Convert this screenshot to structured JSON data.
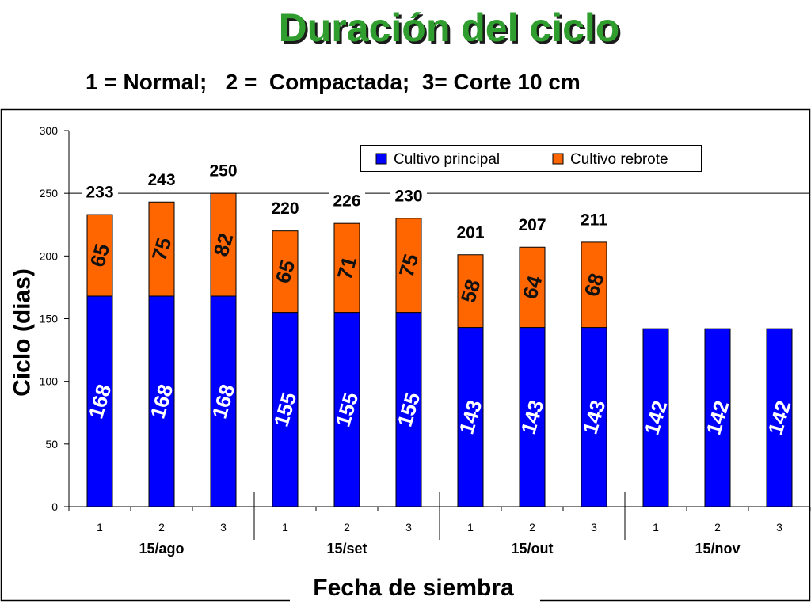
{
  "title": "Duración del ciclo",
  "subtitle": "1 = Normal;   2 =  Compactada;  3= Corte 10 cm",
  "theme": {
    "title_color": "#2f9e2f",
    "axis_color": "#000000",
    "background": "#ffffff"
  },
  "chart_data": {
    "type": "bar",
    "stacked": true,
    "categories": [
      "1",
      "2",
      "3",
      "1",
      "2",
      "3",
      "1",
      "2",
      "3",
      "1",
      "2",
      "3"
    ],
    "groups": [
      {
        "label": "15/ago",
        "size": 3
      },
      {
        "label": "15/set",
        "size": 3
      },
      {
        "label": "15/out",
        "size": 3
      },
      {
        "label": "15/nov",
        "size": 3
      }
    ],
    "series": [
      {
        "name": "Cultivo principal",
        "color": "#0000ff",
        "label_color": "#ffffff",
        "values": [
          168,
          168,
          168,
          155,
          155,
          155,
          143,
          143,
          143,
          142,
          142,
          142
        ]
      },
      {
        "name": "Cultivo rebrote",
        "color": "#ff6600",
        "label_color": "#111111",
        "values": [
          65,
          75,
          82,
          65,
          71,
          75,
          58,
          64,
          68,
          null,
          null,
          null
        ]
      }
    ],
    "totals": [
      233,
      243,
      250,
      220,
      226,
      230,
      201,
      207,
      211,
      null,
      null,
      null
    ],
    "ylabel": "Ciclo (dias)",
    "xlabel": "Fecha de siembra",
    "ylim": [
      0,
      300
    ],
    "yticks": [
      0,
      50,
      100,
      150,
      200,
      250,
      300
    ],
    "gridlines": [
      250
    ],
    "legend_position": "top-right"
  }
}
